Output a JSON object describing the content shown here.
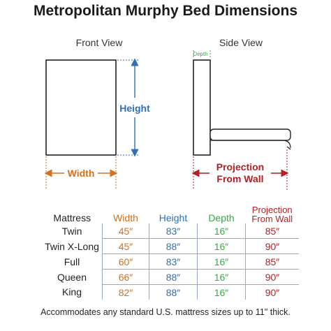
{
  "title": "Metropolitan Murphy Bed Dimensions",
  "front_view": {
    "label": "Front View",
    "height_label": "Height",
    "width_label": "Width"
  },
  "side_view": {
    "label": "Side View",
    "depth_label": "Depth",
    "projection_label_line1": "Projection",
    "projection_label_line2": "From Wall"
  },
  "colors": {
    "width": "#d4701e",
    "height": "#2e6fb8",
    "depth": "#3aa84a",
    "projection": "#b21f24"
  },
  "table": {
    "headers": {
      "mattress": "Mattress",
      "width": "Width",
      "height": "Height",
      "depth": "Depth",
      "projection_line1": "Projection",
      "projection_line2": "From Wall"
    },
    "rows": [
      {
        "mattress": "Twin",
        "width": "45″",
        "height": "83″",
        "depth": "16″",
        "projection": "85″"
      },
      {
        "mattress": "Twin X-Long",
        "width": "45″",
        "height": "88″",
        "depth": "16″",
        "projection": "90″"
      },
      {
        "mattress": "Full",
        "width": "60″",
        "height": "83″",
        "depth": "16″",
        "projection": "85″"
      },
      {
        "mattress": "Queen",
        "width": "66″",
        "height": "88″",
        "depth": "16″",
        "projection": "90″"
      },
      {
        "mattress": "King",
        "width": "82″",
        "height": "88″",
        "depth": "16″",
        "projection": "90″"
      }
    ]
  },
  "footnote": "Accommodates any standard U.S. mattress sizes up to 11\" thick."
}
